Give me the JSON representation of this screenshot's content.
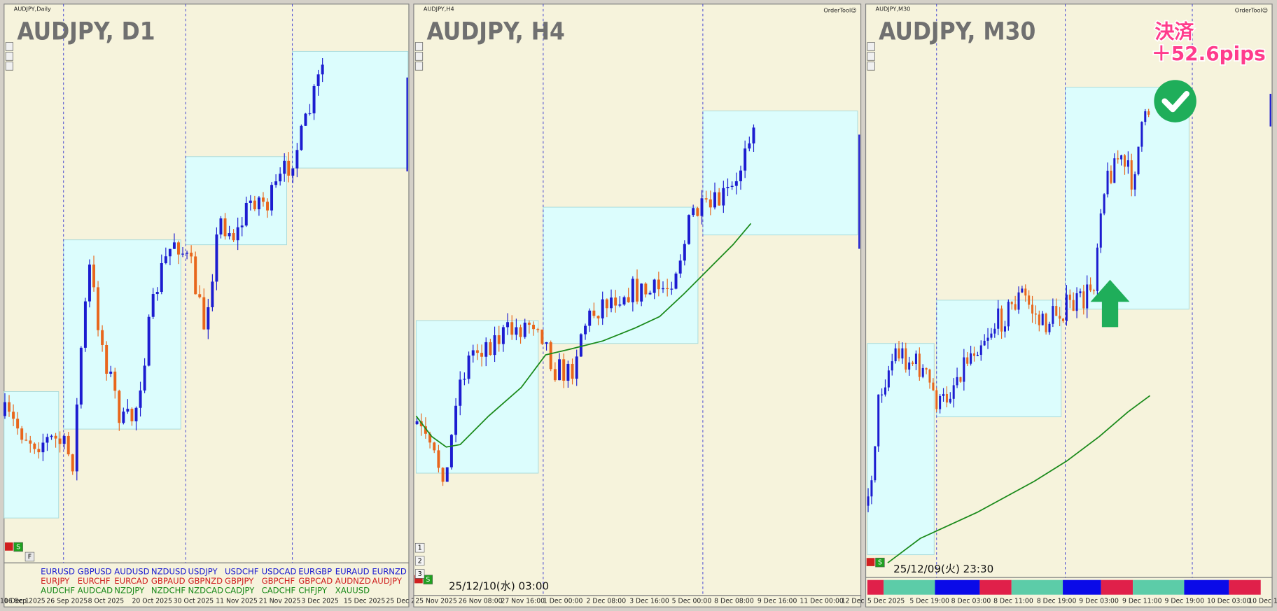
{
  "panels": [
    {
      "symbol_label": "AUDJPY,Daily",
      "title": "AUDJPY, D1",
      "xlabels": [
        "16 Sep 2025",
        "26 Sep 2025",
        "8 Oct 2025",
        "20 Oct 2025",
        "30 Oct 2025",
        "11 Nov 2025",
        "21 Nov 2025",
        "3 Dec 2025",
        "15 Dec 2025",
        "25 Dec 2"
      ],
      "pairs": [
        [
          "EURUSD",
          "GBPUSD",
          "AUDUSD",
          "NZDUSD",
          "USDJPY",
          "USDCHF",
          "USDCAD",
          "EURGBP",
          "EURAUD",
          "EURNZD"
        ],
        [
          "EURJPY",
          "EURCHF",
          "EURCAD",
          "GBPAUD",
          "GBPNZD",
          "GBPJPY",
          "GBPCHF",
          "GBPCAD",
          "AUDNZD",
          "AUDJPY"
        ],
        [
          "AUDCHF",
          "AUDCAD",
          "NZDJPY",
          "NZDCHF",
          "NZDCAD",
          "CADJPY",
          "CADCHF",
          "CHFJPY",
          "XAUUSD"
        ]
      ],
      "buttons": [
        "S",
        "F"
      ]
    },
    {
      "symbol_label": "AUDJPY,H4",
      "title": "AUDJPY, H4",
      "tool": "OrderTool☺",
      "xlabels": [
        "25 Nov 2025",
        "26 Nov 08:00",
        "27 Nov 16:00",
        "1 Dec 00:00",
        "2 Dec 08:00",
        "3 Dec 16:00",
        "5 Dec 00:00",
        "8 Dec 08:00",
        "9 Dec 16:00",
        "11 Dec 00:00",
        "12 Dec"
      ],
      "timestamp": "25/12/10(水) 03:00",
      "buttons": [
        "S",
        "1",
        "2",
        "3"
      ]
    },
    {
      "symbol_label": "AUDJPY,M30",
      "title": "AUDJPY, M30",
      "tool": "OrderTool☺",
      "xlabels": [
        "5 Dec 2025",
        "5 Dec 19:00",
        "8 Dec 03:00",
        "8 Dec 11:00",
        "8 Dec 19:00",
        "9 Dec 03:00",
        "9 Dec 11:00",
        "9 Dec 19:00",
        "10 Dec 03:00",
        "10 Dec 11:00",
        "10 Dec 1"
      ],
      "timestamp": "25/12/09(火) 23:30",
      "buttons": [
        "S"
      ]
    }
  ],
  "annotation": {
    "line1": "決済",
    "line2": "＋52.6pips"
  }
}
